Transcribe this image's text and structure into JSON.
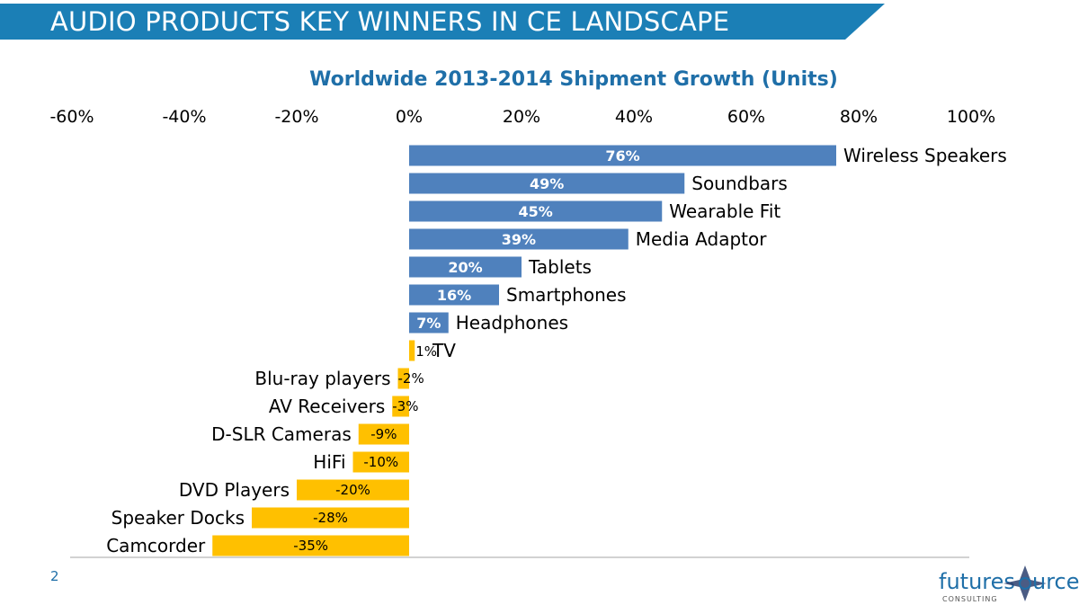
{
  "header": {
    "title": "AUDIO PRODUCTS KEY WINNERS IN CE LANDSCAPE",
    "banner_color": "#1b7fb6"
  },
  "footer": {
    "page_number": "2",
    "logo_text_a": "futures",
    "logo_text_b": "urce",
    "logo_subtext": "CONSULTING"
  },
  "colors": {
    "positive": "#4f81bd",
    "negative": "#ffc000",
    "title": "#1f6fa8"
  },
  "chart_data": {
    "type": "bar",
    "orientation": "horizontal",
    "title": "Worldwide 2013-2014 Shipment Growth (Units)",
    "xlim": [
      -60,
      100
    ],
    "xticks": [
      -60,
      -40,
      -20,
      0,
      20,
      40,
      60,
      80,
      100
    ],
    "xtick_labels": [
      "-60%",
      "-40%",
      "-20%",
      "0%",
      "20%",
      "40%",
      "60%",
      "80%",
      "100%"
    ],
    "grid": false,
    "legend": "none",
    "categories": [
      "Wireless Speakers",
      "Soundbars",
      "Wearable Fit",
      "Media Adaptor",
      "Tablets",
      "Smartphones",
      "Headphones",
      "TV",
      "Blu-ray players",
      "AV Receivers",
      "D-SLR Cameras",
      "HiFi",
      "DVD Players",
      "Speaker Docks",
      "Camcorder"
    ],
    "values": [
      76,
      49,
      45,
      39,
      20,
      16,
      7,
      1,
      -2,
      -3,
      -9,
      -10,
      -20,
      -28,
      -35
    ],
    "value_labels": [
      "76%",
      "49%",
      "45%",
      "39%",
      "20%",
      "16%",
      "7%",
      "1%",
      "-2%",
      "-3%",
      "-9%",
      "-10%",
      "-20%",
      "-28%",
      "-35%"
    ]
  }
}
